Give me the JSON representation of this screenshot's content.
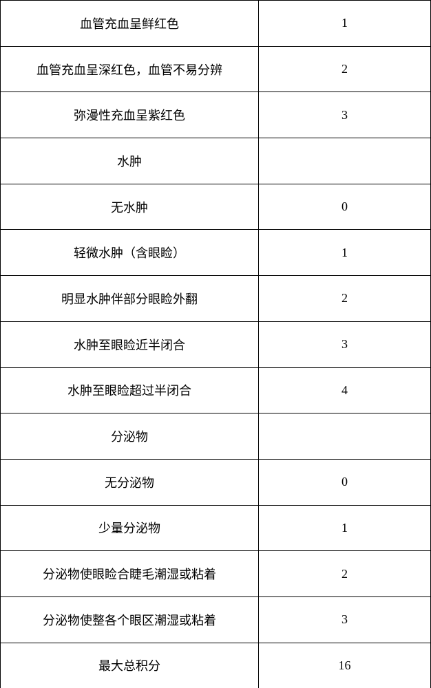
{
  "table": {
    "font_size": 18,
    "font_family": "SimSun",
    "border_color": "#000000",
    "background_color": "#ffffff",
    "text_color": "#000000",
    "col_widths": [
      "60%",
      "40%"
    ],
    "rows": [
      {
        "label": "血管充血呈鲜红色",
        "value": "1"
      },
      {
        "label": "血管充血呈深红色，血管不易分辨",
        "value": "2"
      },
      {
        "label": "弥漫性充血呈紫红色",
        "value": "3"
      },
      {
        "label": "水肿",
        "value": ""
      },
      {
        "label": "无水肿",
        "value": "0"
      },
      {
        "label": "轻微水肿（含眼睑）",
        "value": "1"
      },
      {
        "label": "明显水肿伴部分眼睑外翻",
        "value": "2"
      },
      {
        "label": "水肿至眼睑近半闭合",
        "value": "3"
      },
      {
        "label": "水肿至眼睑超过半闭合",
        "value": "4"
      },
      {
        "label": "分泌物",
        "value": ""
      },
      {
        "label": "无分泌物",
        "value": "0"
      },
      {
        "label": "少量分泌物",
        "value": "1"
      },
      {
        "label": "分泌物使眼睑合睫毛潮湿或粘着",
        "value": "2"
      },
      {
        "label": "分泌物使整各个眼区潮湿或粘着",
        "value": "3"
      },
      {
        "label": "最大总积分",
        "value": "16"
      }
    ]
  }
}
